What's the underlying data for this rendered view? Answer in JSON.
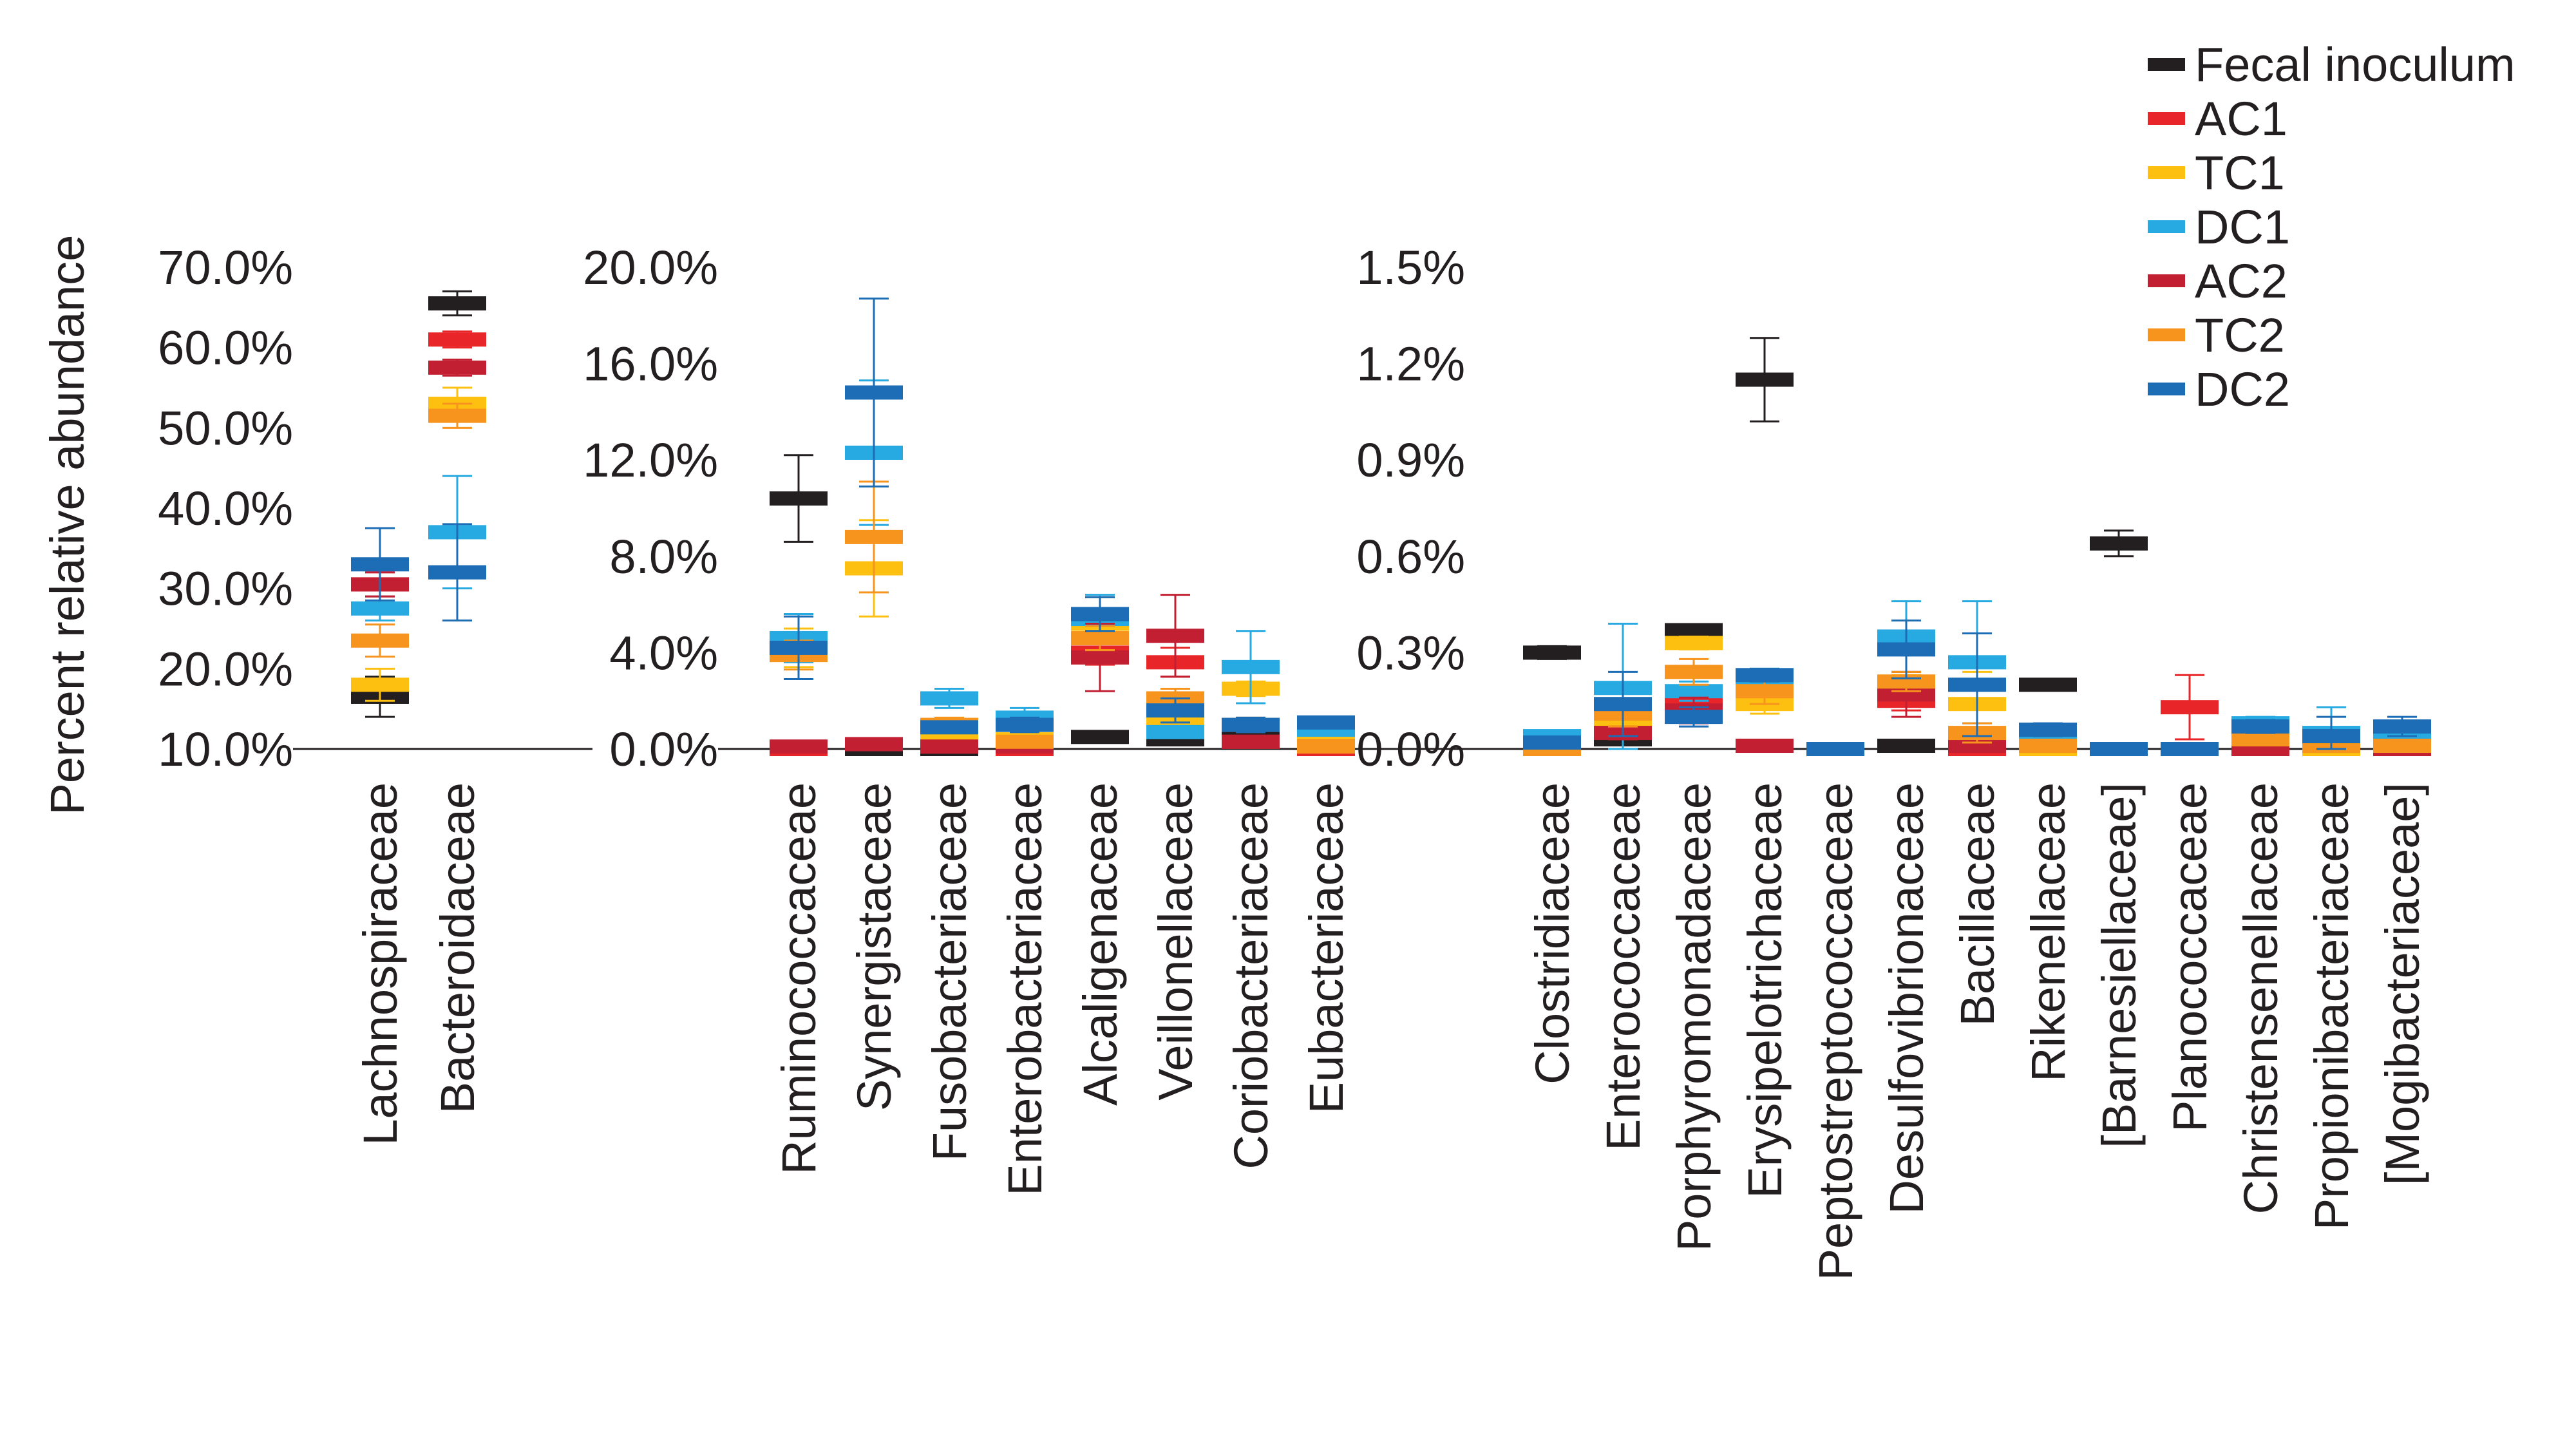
{
  "ylabel": "Percent relative abundance",
  "colors": {
    "Fecal inoculum": "#231f20",
    "AC1": "#e8262a",
    "TC1": "#fdc010",
    "DC1": "#27aae1",
    "AC2": "#c21f32",
    "TC2": "#f7941d",
    "DC2": "#1c6db5"
  },
  "legend": [
    "Fecal inoculum",
    "AC1",
    "TC1",
    "DC1",
    "AC2",
    "TC2",
    "DC2"
  ],
  "chart_data": [
    {
      "type": "scatter",
      "panel": "high abundance",
      "ylim": [
        10,
        70
      ],
      "yticks": [
        "10.0%",
        "20.0%",
        "30.0%",
        "40.0%",
        "50.0%",
        "60.0%",
        "70.0%"
      ],
      "categories": [
        "Lachnospiraceae",
        "Bacteroidaceae"
      ],
      "series": [
        {
          "name": "Fecal inoculum",
          "values": [
            16.5,
            65.5
          ],
          "err": [
            2.5,
            1.5
          ]
        },
        {
          "name": "AC1",
          "values": [
            30.5,
            61.0
          ],
          "err": [
            1.5,
            1.0
          ]
        },
        {
          "name": "TC1",
          "values": [
            18.0,
            53.0
          ],
          "err": [
            2.0,
            2.0
          ]
        },
        {
          "name": "DC1",
          "values": [
            27.5,
            37.0
          ],
          "err": [
            1.5,
            7.0
          ]
        },
        {
          "name": "AC2",
          "values": [
            30.5,
            57.5
          ],
          "err": [
            1.5,
            1.0
          ]
        },
        {
          "name": "TC2",
          "values": [
            23.5,
            51.5
          ],
          "err": [
            2.0,
            1.5
          ]
        },
        {
          "name": "DC2",
          "values": [
            33.0,
            32.0
          ],
          "err": [
            4.5,
            6.0
          ]
        }
      ]
    },
    {
      "type": "scatter",
      "panel": "medium abundance",
      "ylim": [
        0,
        20
      ],
      "yticks": [
        "0.0%",
        "4.0%",
        "8.0%",
        "12.0%",
        "16.0%",
        "20.0%"
      ],
      "categories": [
        "Ruminococcaceae",
        "Synergistaceae",
        "Fusobacteriaceae",
        "Enterobacteriaceae",
        "Alcaligenaceae",
        "Veillonellaceae",
        "Coriobacteriaceae",
        "Eubacteriaceae"
      ],
      "series": [
        {
          "name": "Fecal inoculum",
          "values": [
            10.4,
            0.0,
            0.0,
            0.0,
            0.5,
            0.4,
            0.6,
            0.0
          ],
          "err": [
            1.8,
            0,
            0,
            0,
            0,
            0.1,
            0,
            0
          ]
        },
        {
          "name": "AC1",
          "values": [
            0.0,
            0.2,
            0.1,
            0.0,
            4.0,
            3.6,
            0.3,
            0.0
          ],
          "err": [
            0,
            0.2,
            0,
            0,
            0.5,
            0.6,
            0,
            0
          ]
        },
        {
          "name": "TC1",
          "values": [
            4.2,
            7.5,
            0.5,
            0.4,
            5.2,
            1.1,
            2.5,
            0.3
          ],
          "err": [
            0.8,
            2.0,
            0.5,
            0.1,
            1.1,
            0.3,
            0.3,
            0
          ]
        },
        {
          "name": "DC1",
          "values": [
            4.6,
            12.3,
            2.1,
            1.3,
            5.4,
            0.7,
            3.4,
            0.8
          ],
          "err": [
            1.0,
            3.0,
            0.4,
            0.4,
            1.0,
            0.2,
            1.5,
            0.2
          ]
        },
        {
          "name": "AC2",
          "values": [
            0.1,
            0.2,
            0.1,
            0.1,
            3.8,
            4.7,
            0.3,
            0.1
          ],
          "err": [
            0,
            0,
            0,
            0,
            1.4,
            1.7,
            0,
            0
          ]
        },
        {
          "name": "TC2",
          "values": [
            3.9,
            8.8,
            1.0,
            0.3,
            4.6,
            2.1,
            1.0,
            0.1
          ],
          "err": [
            0.6,
            2.3,
            0.3,
            0.1,
            0.5,
            0.4,
            0.3,
            0
          ]
        },
        {
          "name": "DC2",
          "values": [
            4.2,
            14.8,
            0.9,
            1.0,
            5.6,
            1.6,
            1.0,
            1.1
          ],
          "err": [
            1.3,
            3.9,
            0.2,
            0.3,
            0.7,
            0.5,
            0.3,
            0.2
          ]
        }
      ]
    },
    {
      "type": "scatter",
      "panel": "low abundance",
      "ylim": [
        0,
        1.5
      ],
      "yticks": [
        "0.0%",
        "0.3%",
        "0.6%",
        "0.9%",
        "1.2%",
        "1.5%"
      ],
      "categories": [
        "Clostridiaceae",
        "Enterococcaceae",
        "Porphyromonadaceae",
        "Erysipelotrichaceae",
        "Peptostreptococcaceae",
        "Desulfovibrionaceae",
        "Bacillaceae",
        "Rikenellaceae",
        "[Barnesiellaceae]",
        "Planococcaceae",
        "Christensenellaceae",
        "Propionibacteriaceae",
        "[Mogibacteriaceae]"
      ],
      "series": [
        {
          "name": "Fecal inoculum",
          "values": [
            0.3,
            0.03,
            0.37,
            1.15,
            0.0,
            0.01,
            0.0,
            0.2,
            0.64,
            0.0,
            0.0,
            0.0,
            0.0
          ],
          "err": [
            0.02,
            0,
            0.01,
            0.13,
            0,
            0,
            0,
            0,
            0.04,
            0,
            0,
            0,
            0
          ]
        },
        {
          "name": "AC1",
          "values": [
            0.0,
            0.06,
            0.15,
            0.01,
            0.0,
            0.15,
            0.0,
            0.0,
            0.0,
            0.13,
            0.0,
            0.0,
            0.0
          ],
          "err": [
            0,
            0.02,
            0.03,
            0,
            0,
            0.03,
            0,
            0,
            0,
            0.1,
            0,
            0,
            0
          ]
        },
        {
          "name": "TC1",
          "values": [
            0.0,
            0.09,
            0.33,
            0.14,
            0.0,
            0.2,
            0.14,
            0.0,
            0.0,
            0.0,
            0.0,
            0.0,
            0.0
          ],
          "err": [
            0,
            0.05,
            0.02,
            0.03,
            0,
            0.03,
            0.1,
            0,
            0,
            0,
            0,
            0,
            0
          ]
        },
        {
          "name": "DC1",
          "values": [
            0.04,
            0.19,
            0.18,
            0.22,
            0.0,
            0.35,
            0.27,
            0.02,
            0.0,
            0.0,
            0.08,
            0.05,
            0.04
          ],
          "err": [
            0.01,
            0.2,
            0.03,
            0.03,
            0,
            0.11,
            0.19,
            0,
            0,
            0,
            0.02,
            0.08,
            0.02
          ]
        },
        {
          "name": "AC2",
          "values": [
            0.0,
            0.05,
            0.12,
            0.01,
            0.0,
            0.17,
            0.01,
            0.01,
            0.0,
            0.0,
            0.0,
            0.01,
            0.0
          ],
          "err": [
            0,
            0.02,
            0.04,
            0,
            0,
            0.07,
            0,
            0,
            0,
            0,
            0,
            0,
            0
          ]
        },
        {
          "name": "TC2",
          "values": [
            0.0,
            0.11,
            0.24,
            0.18,
            0.0,
            0.21,
            0.05,
            0.01,
            0.0,
            0.0,
            0.03,
            0.01,
            0.01
          ],
          "err": [
            0,
            0.04,
            0.04,
            0.04,
            0,
            0.03,
            0.03,
            0,
            0,
            0,
            0.01,
            0,
            0
          ]
        },
        {
          "name": "DC2",
          "values": [
            0.02,
            0.14,
            0.1,
            0.23,
            0.0,
            0.31,
            0.2,
            0.06,
            0.0,
            0.0,
            0.07,
            0.04,
            0.07
          ],
          "err": [
            0.01,
            0.1,
            0.03,
            0.02,
            0,
            0.09,
            0.16,
            0.02,
            0,
            0,
            0.02,
            0.06,
            0.03
          ]
        }
      ]
    }
  ]
}
